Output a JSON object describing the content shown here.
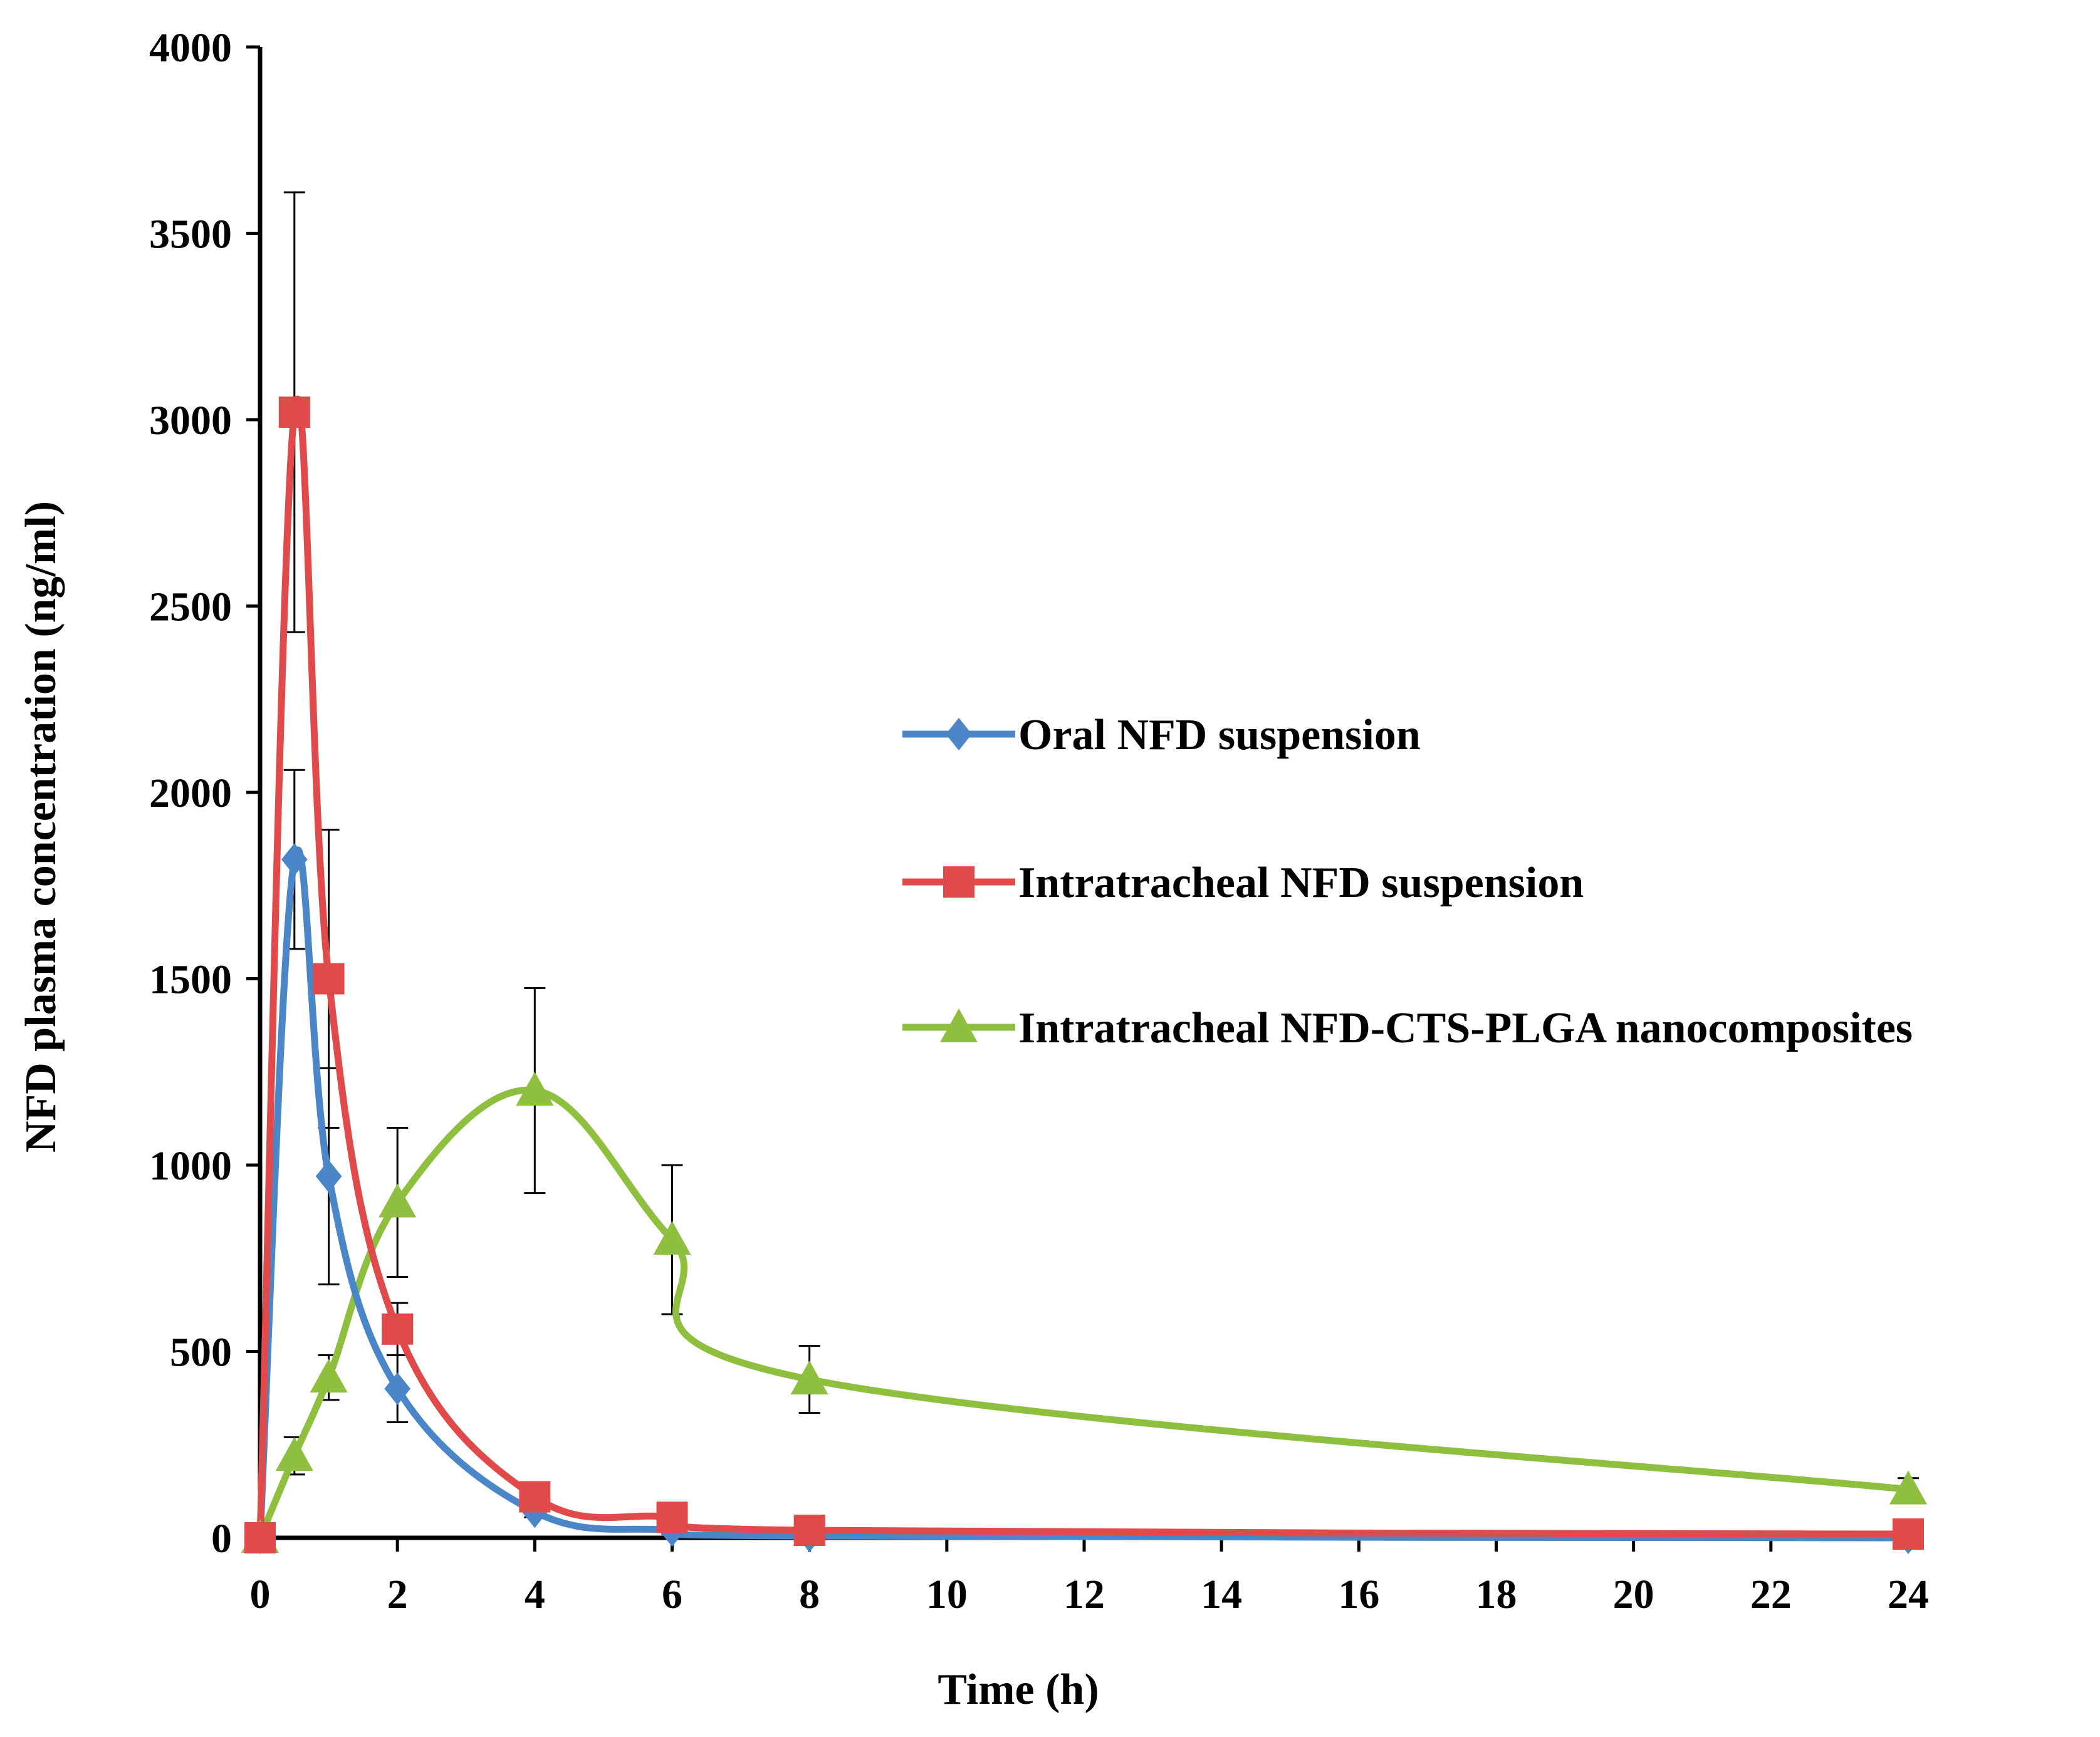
{
  "chart_data": {
    "type": "line",
    "title": "",
    "xlabel": "Time (h)",
    "ylabel": "NFD plasma concentration  (ng/ml)",
    "xlim": [
      0,
      24
    ],
    "ylim": [
      0,
      4000
    ],
    "x_ticks": [
      "0",
      "2",
      "4",
      "6",
      "8",
      "10",
      "12",
      "14",
      "16",
      "18",
      "20",
      "22",
      "24"
    ],
    "y_ticks": [
      "0",
      "500",
      "1000",
      "1500",
      "2000",
      "2500",
      "3000",
      "3500",
      "4000"
    ],
    "grid": false,
    "legend_position": "right-middle",
    "series": [
      {
        "name": "Oral NFD suspension",
        "color": "#4a86c8",
        "marker": "diamond",
        "x": [
          0,
          0.5,
          1,
          2,
          4,
          6,
          8,
          24
        ],
        "y": [
          0,
          1820,
          970,
          400,
          70,
          20,
          5,
          0
        ],
        "error": [
          0,
          240,
          290,
          90,
          15,
          10,
          0,
          0
        ]
      },
      {
        "name": "Intratracheal NFD suspension",
        "color": "#e04a4a",
        "marker": "square",
        "x": [
          0,
          0.5,
          1,
          2,
          4,
          6,
          8,
          24
        ],
        "y": [
          0,
          3020,
          1500,
          560,
          110,
          55,
          20,
          10
        ],
        "error": [
          0,
          590,
          400,
          70,
          20,
          10,
          5,
          0
        ]
      },
      {
        "name": "Intratracheal NFD-CTS-PLGA nanocomposites",
        "color": "#8fbf3f",
        "marker": "triangle",
        "x": [
          0,
          0.5,
          1,
          2,
          4,
          6,
          8,
          24
        ],
        "y": [
          0,
          220,
          430,
          900,
          1200,
          800,
          425,
          130
        ],
        "error": [
          0,
          50,
          60,
          200,
          275,
          200,
          90,
          30
        ]
      }
    ]
  }
}
